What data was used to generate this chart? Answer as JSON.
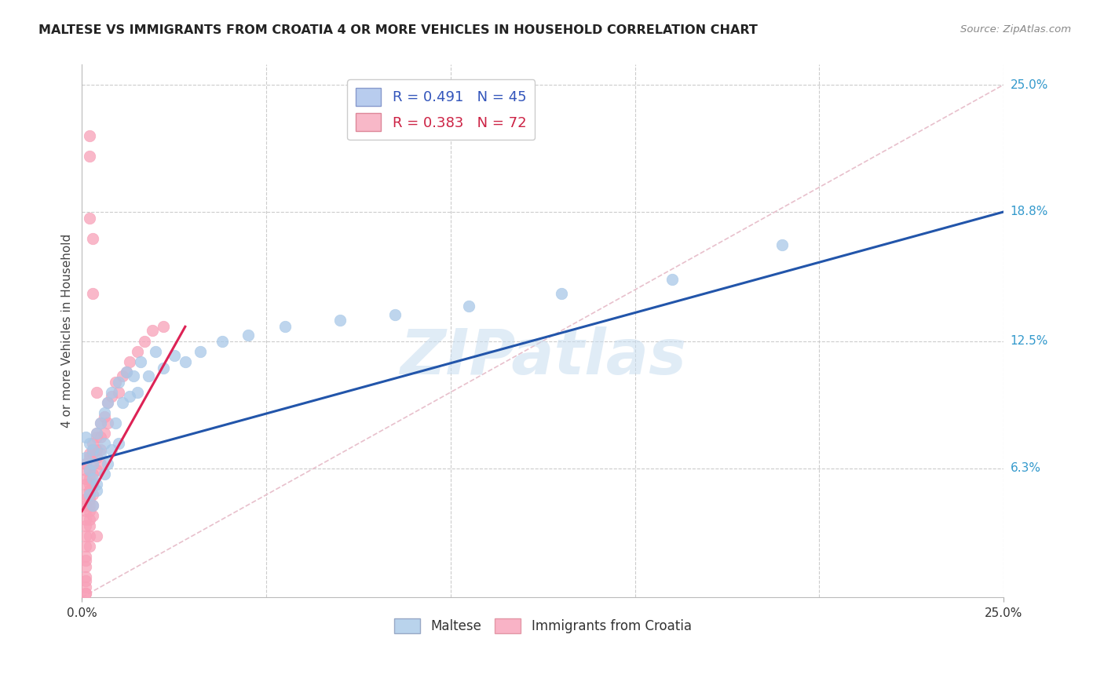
{
  "title": "MALTESE VS IMMIGRANTS FROM CROATIA 4 OR MORE VEHICLES IN HOUSEHOLD CORRELATION CHART",
  "source": "Source: ZipAtlas.com",
  "ylabel": "4 or more Vehicles in Household",
  "xlim": [
    0.0,
    0.25
  ],
  "ylim": [
    0.0,
    0.26
  ],
  "ytick_labels": [
    "6.3%",
    "12.5%",
    "18.8%",
    "25.0%"
  ],
  "ytick_values": [
    0.063,
    0.125,
    0.188,
    0.25
  ],
  "blue_color": "#a8c8e8",
  "pink_color": "#f8a0b8",
  "blue_line_color": "#2255aa",
  "pink_line_color": "#dd2255",
  "diagonal_color": "#e8c0cc",
  "watermark": "ZIPatlas",
  "blue_line_x0": 0.0,
  "blue_line_y0": 0.065,
  "blue_line_x1": 0.25,
  "blue_line_y1": 0.188,
  "pink_line_x0": 0.0,
  "pink_line_y0": 0.042,
  "pink_line_x1": 0.028,
  "pink_line_y1": 0.132,
  "legend1_r": "0.491",
  "legend1_n": "45",
  "legend2_r": "0.383",
  "legend2_n": "72",
  "blue_scatter_x": [
    0.001,
    0.001,
    0.002,
    0.002,
    0.003,
    0.003,
    0.003,
    0.004,
    0.004,
    0.005,
    0.005,
    0.006,
    0.006,
    0.006,
    0.007,
    0.007,
    0.008,
    0.008,
    0.009,
    0.01,
    0.01,
    0.011,
    0.012,
    0.013,
    0.014,
    0.015,
    0.016,
    0.018,
    0.02,
    0.022,
    0.025,
    0.028,
    0.032,
    0.038,
    0.045,
    0.055,
    0.07,
    0.085,
    0.105,
    0.13,
    0.16,
    0.19,
    0.002,
    0.003,
    0.004
  ],
  "blue_scatter_y": [
    0.078,
    0.068,
    0.075,
    0.062,
    0.072,
    0.065,
    0.058,
    0.08,
    0.055,
    0.085,
    0.07,
    0.09,
    0.075,
    0.06,
    0.095,
    0.065,
    0.1,
    0.072,
    0.085,
    0.105,
    0.075,
    0.095,
    0.11,
    0.098,
    0.108,
    0.1,
    0.115,
    0.108,
    0.12,
    0.112,
    0.118,
    0.115,
    0.12,
    0.125,
    0.128,
    0.132,
    0.135,
    0.138,
    0.142,
    0.148,
    0.155,
    0.172,
    0.05,
    0.045,
    0.052
  ],
  "pink_scatter_x": [
    0.001,
    0.001,
    0.001,
    0.001,
    0.001,
    0.001,
    0.001,
    0.001,
    0.001,
    0.001,
    0.001,
    0.001,
    0.001,
    0.001,
    0.001,
    0.001,
    0.001,
    0.002,
    0.002,
    0.002,
    0.002,
    0.002,
    0.002,
    0.002,
    0.002,
    0.002,
    0.002,
    0.002,
    0.002,
    0.002,
    0.003,
    0.003,
    0.003,
    0.003,
    0.003,
    0.003,
    0.003,
    0.003,
    0.003,
    0.004,
    0.004,
    0.004,
    0.004,
    0.004,
    0.005,
    0.005,
    0.005,
    0.005,
    0.006,
    0.006,
    0.007,
    0.007,
    0.008,
    0.009,
    0.01,
    0.011,
    0.012,
    0.013,
    0.015,
    0.017,
    0.019,
    0.022,
    0.003,
    0.002,
    0.002,
    0.002,
    0.003,
    0.004,
    0.004,
    0.001,
    0.001,
    0.001
  ],
  "pink_scatter_y": [
    0.062,
    0.055,
    0.05,
    0.045,
    0.042,
    0.038,
    0.035,
    0.03,
    0.025,
    0.02,
    0.015,
    0.01,
    0.005,
    0.002,
    0.048,
    0.058,
    0.065,
    0.068,
    0.062,
    0.058,
    0.055,
    0.052,
    0.048,
    0.045,
    0.042,
    0.038,
    0.035,
    0.03,
    0.025,
    0.07,
    0.075,
    0.07,
    0.065,
    0.06,
    0.055,
    0.05,
    0.045,
    0.04,
    0.072,
    0.078,
    0.072,
    0.068,
    0.062,
    0.08,
    0.085,
    0.078,
    0.072,
    0.065,
    0.088,
    0.08,
    0.095,
    0.085,
    0.098,
    0.105,
    0.1,
    0.108,
    0.11,
    0.115,
    0.12,
    0.125,
    0.13,
    0.132,
    0.175,
    0.185,
    0.215,
    0.225,
    0.148,
    0.1,
    0.03,
    0.002,
    0.008,
    0.018
  ]
}
